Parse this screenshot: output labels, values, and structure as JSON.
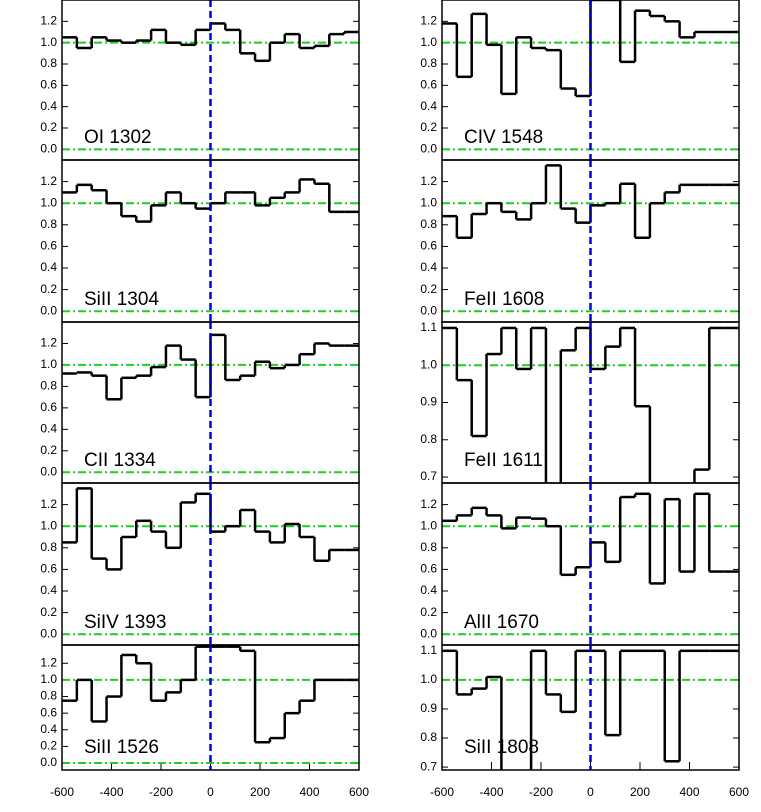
{
  "chart_data": [
    {
      "type": "step",
      "label": "OI 1302",
      "color": "#000000",
      "x": [
        -570,
        -510,
        -450,
        -390,
        -330,
        -270,
        -210,
        -150,
        -90,
        -30,
        30,
        90,
        150,
        210,
        270,
        330,
        390,
        450,
        510,
        570
      ],
      "values": [
        1.05,
        0.95,
        1.05,
        1.02,
        1.0,
        1.02,
        1.12,
        1.0,
        0.98,
        1.12,
        1.18,
        1.12,
        0.9,
        0.83,
        1.0,
        1.08,
        0.95,
        0.97,
        1.08,
        1.1
      ],
      "xlim": [
        -600,
        600
      ],
      "ylim": [
        -0.1,
        1.4
      ],
      "yticks": [
        {
          "value": 0,
          "label": "0.0"
        },
        0.2,
        0.4,
        0.6,
        0.8,
        {
          "value": 1,
          "label": "1.0"
        },
        1.2
      ],
      "hlines": [
        0,
        1
      ],
      "hline_color": "#22cc22",
      "vline": 0,
      "vline_color": "#0000dd"
    },
    {
      "type": "step",
      "label": "CIV 1548",
      "color": "#000000",
      "x": [
        -570,
        -510,
        -450,
        -390,
        -330,
        -270,
        -210,
        -150,
        -90,
        -30,
        30,
        90,
        150,
        210,
        270,
        330,
        390,
        450,
        510,
        570
      ],
      "values": [
        1.18,
        0.68,
        1.27,
        0.98,
        0.52,
        1.05,
        0.95,
        0.93,
        0.57,
        0.5,
        1.4,
        1.4,
        0.82,
        1.3,
        1.25,
        1.2,
        1.05,
        1.1,
        1.1,
        1.1
      ],
      "xlim": [
        -600,
        600
      ],
      "ylim": [
        -0.1,
        1.4
      ],
      "yticks": [
        {
          "value": 0,
          "label": "0.0"
        },
        0.2,
        0.4,
        0.6,
        0.8,
        {
          "value": 1,
          "label": "1.0"
        },
        1.2
      ],
      "hlines": [
        0,
        1
      ],
      "hline_color": "#22cc22",
      "vline": 0,
      "vline_color": "#0000dd"
    },
    {
      "type": "step",
      "label": "SiII 1304",
      "color": "#000000",
      "x": [
        -570,
        -510,
        -450,
        -390,
        -330,
        -270,
        -210,
        -150,
        -90,
        -30,
        30,
        90,
        150,
        210,
        270,
        330,
        390,
        450,
        510,
        570
      ],
      "values": [
        1.1,
        1.17,
        1.12,
        1.0,
        0.88,
        0.83,
        0.98,
        1.1,
        1.0,
        0.95,
        1.0,
        1.1,
        1.1,
        0.98,
        1.05,
        1.1,
        1.22,
        1.18,
        0.92,
        0.92
      ],
      "xlim": [
        -600,
        600
      ],
      "ylim": [
        -0.1,
        1.4
      ],
      "yticks": [
        {
          "value": 0,
          "label": "0.0"
        },
        0.2,
        0.4,
        0.6,
        0.8,
        {
          "value": 1,
          "label": "1.0"
        },
        1.2
      ],
      "hlines": [
        0,
        1
      ],
      "hline_color": "#22cc22",
      "vline": 0,
      "vline_color": "#0000dd"
    },
    {
      "type": "step",
      "label": "FeII 1608",
      "color": "#000000",
      "x": [
        -570,
        -510,
        -450,
        -390,
        -330,
        -270,
        -210,
        -150,
        -90,
        -30,
        30,
        90,
        150,
        210,
        270,
        330,
        390,
        450,
        510,
        570
      ],
      "values": [
        0.88,
        0.68,
        0.9,
        1.0,
        0.92,
        0.85,
        1.0,
        1.35,
        0.95,
        0.82,
        0.98,
        1.0,
        1.18,
        0.68,
        1.0,
        1.1,
        1.17,
        1.17,
        1.17,
        1.17
      ],
      "xlim": [
        -600,
        600
      ],
      "ylim": [
        -0.1,
        1.4
      ],
      "yticks": [
        {
          "value": 0,
          "label": "0.0"
        },
        0.2,
        0.4,
        0.6,
        0.8,
        {
          "value": 1,
          "label": "1.0"
        },
        1.2
      ],
      "hlines": [
        0,
        1
      ],
      "hline_color": "#22cc22",
      "vline": 0,
      "vline_color": "#0000dd"
    },
    {
      "type": "step",
      "label": "CII 1334",
      "color": "#000000",
      "x": [
        -570,
        -510,
        -450,
        -390,
        -330,
        -270,
        -210,
        -150,
        -90,
        -30,
        30,
        90,
        150,
        210,
        270,
        330,
        390,
        450,
        510,
        570
      ],
      "values": [
        0.92,
        0.93,
        0.9,
        0.68,
        0.88,
        0.9,
        0.98,
        1.18,
        1.05,
        0.7,
        1.28,
        0.86,
        0.9,
        1.03,
        0.97,
        1.0,
        1.1,
        1.2,
        1.18,
        1.18
      ],
      "xlim": [
        -600,
        600
      ],
      "ylim": [
        -0.1,
        1.4
      ],
      "yticks": [
        {
          "value": 0,
          "label": "0.0"
        },
        0.2,
        0.4,
        0.6,
        0.8,
        {
          "value": 1,
          "label": "1.0"
        },
        1.2
      ],
      "hlines": [
        0,
        1
      ],
      "hline_color": "#22cc22",
      "vline": 0,
      "vline_color": "#0000dd"
    },
    {
      "type": "step",
      "label": "FeII 1611",
      "color": "#000000",
      "x": [
        -570,
        -510,
        -450,
        -390,
        -330,
        -270,
        -210,
        -150,
        -90,
        -30,
        30,
        90,
        150,
        210,
        270,
        330,
        390,
        450,
        510,
        570
      ],
      "values": [
        1.1,
        0.96,
        0.81,
        1.03,
        1.1,
        0.99,
        1.1,
        0.68,
        1.04,
        1.1,
        0.99,
        1.05,
        1.1,
        0.89,
        0.68,
        0.68,
        0.68,
        0.72,
        1.1,
        1.1
      ],
      "xlim": [
        -600,
        600
      ],
      "ylim": [
        0.684,
        1.116
      ],
      "yticks": [
        0.7,
        0.8,
        0.9,
        {
          "value": 1,
          "label": "1.0"
        },
        1.1
      ],
      "hlines": [
        1
      ],
      "hline_color": "#22cc22",
      "vline": 0,
      "vline_color": "#0000dd"
    },
    {
      "type": "step",
      "label": "SiIV 1393",
      "color": "#000000",
      "x": [
        -570,
        -510,
        -450,
        -390,
        -330,
        -270,
        -210,
        -150,
        -90,
        -30,
        30,
        90,
        150,
        210,
        270,
        330,
        390,
        450,
        510,
        570
      ],
      "values": [
        0.85,
        1.35,
        0.7,
        0.6,
        0.9,
        1.05,
        0.95,
        0.8,
        1.22,
        1.3,
        0.95,
        1.0,
        1.15,
        0.95,
        0.85,
        1.02,
        0.9,
        0.68,
        0.78,
        0.78
      ],
      "xlim": [
        -600,
        600
      ],
      "ylim": [
        -0.1,
        1.4
      ],
      "yticks": [
        {
          "value": 0,
          "label": "0.0"
        },
        0.2,
        0.4,
        0.6,
        0.8,
        {
          "value": 1,
          "label": "1.0"
        },
        1.2
      ],
      "hlines": [
        0,
        1
      ],
      "hline_color": "#22cc22",
      "vline": 0,
      "vline_color": "#0000dd"
    },
    {
      "type": "step",
      "label": "AlII 1670",
      "color": "#000000",
      "x": [
        -570,
        -510,
        -450,
        -390,
        -330,
        -270,
        -210,
        -150,
        -90,
        -30,
        30,
        90,
        150,
        210,
        270,
        330,
        390,
        450,
        510,
        570
      ],
      "values": [
        1.05,
        1.1,
        1.17,
        1.1,
        0.98,
        1.08,
        1.07,
        1.0,
        0.55,
        0.62,
        0.85,
        0.67,
        1.27,
        1.3,
        0.47,
        1.25,
        0.58,
        1.3,
        0.58,
        0.58
      ],
      "xlim": [
        -600,
        600
      ],
      "ylim": [
        -0.1,
        1.4
      ],
      "yticks": [
        {
          "value": 0,
          "label": "0.0"
        },
        0.2,
        0.4,
        0.6,
        0.8,
        {
          "value": 1,
          "label": "1.0"
        },
        1.2
      ],
      "hlines": [
        0,
        1
      ],
      "hline_color": "#22cc22",
      "vline": 0,
      "vline_color": "#0000dd"
    },
    {
      "type": "step",
      "label": "SiII 1526",
      "color": "#000000",
      "x": [
        -570,
        -510,
        -450,
        -390,
        -330,
        -270,
        -210,
        -150,
        -90,
        -30,
        30,
        90,
        150,
        210,
        270,
        330,
        390,
        450,
        510,
        570
      ],
      "values": [
        0.75,
        1.0,
        0.5,
        0.8,
        1.3,
        1.2,
        0.75,
        0.85,
        1.0,
        1.4,
        1.4,
        1.4,
        1.35,
        0.25,
        0.3,
        0.6,
        0.75,
        1.0,
        1.0,
        1.0
      ],
      "xlim": [
        -600,
        600
      ],
      "ylim": [
        -0.084,
        1.42
      ],
      "yticks": [
        {
          "value": 0,
          "label": "0.0"
        },
        0.2,
        0.4,
        0.6,
        0.8,
        {
          "value": 1,
          "label": "1.0"
        },
        1.2
      ],
      "xticks": [
        -600,
        -400,
        -200,
        0,
        200,
        400,
        600
      ],
      "hlines": [
        0,
        1
      ],
      "hline_color": "#22cc22",
      "vline": 0,
      "vline_color": "#0000dd"
    },
    {
      "type": "step",
      "label": "SiII 1808",
      "color": "#000000",
      "x": [
        -570,
        -510,
        -450,
        -390,
        -330,
        -270,
        -210,
        -150,
        -90,
        -30,
        30,
        90,
        150,
        210,
        270,
        330,
        390,
        450,
        510,
        570
      ],
      "values": [
        1.1,
        0.95,
        0.97,
        1.01,
        0.67,
        0.67,
        1.1,
        0.95,
        0.89,
        1.1,
        1.1,
        0.81,
        1.1,
        1.1,
        1.1,
        0.72,
        1.1,
        1.1,
        1.1,
        1.1
      ],
      "xlim": [
        -600,
        600
      ],
      "ylim": [
        0.69,
        1.12
      ],
      "yticks": [
        0.7,
        0.8,
        0.9,
        {
          "value": 1,
          "label": "1.0"
        },
        1.1
      ],
      "xticks": [
        -600,
        -400,
        -200,
        0,
        200,
        400,
        600
      ],
      "hlines": [
        1
      ],
      "hline_color": "#22cc22",
      "vline": 0,
      "vline_color": "#0000dd"
    }
  ]
}
